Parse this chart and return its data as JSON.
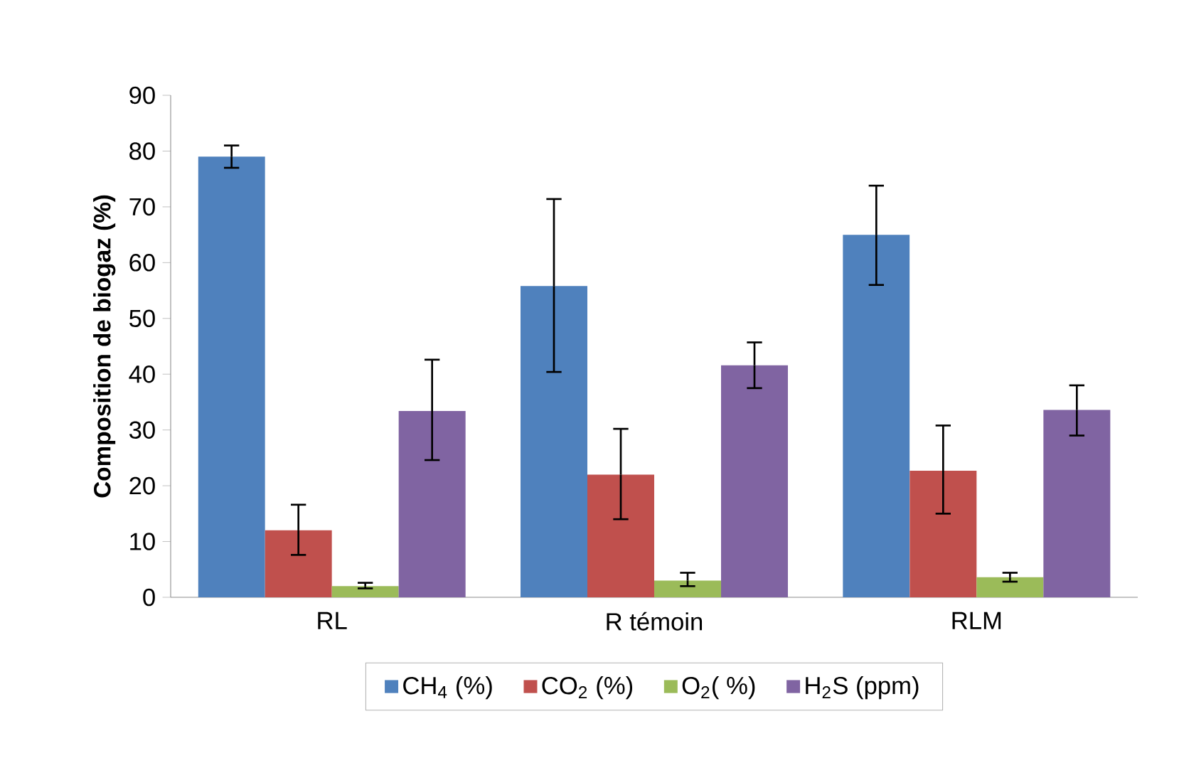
{
  "chart_data": {
    "type": "bar",
    "ylabel": "Composition de biogaz (%)",
    "categories": [
      "RL",
      "R témoin",
      "RLM"
    ],
    "series": [
      {
        "name": "CH$_{4}$ (%)",
        "color": "#4f81bd",
        "values": [
          79,
          55.8,
          65
        ],
        "errors": [
          [
            77,
            81
          ],
          [
            40.4,
            71.4
          ],
          [
            56,
            73.8
          ]
        ]
      },
      {
        "name": "CO$_{2}$ (%)",
        "color": "#c0504d",
        "values": [
          12,
          22,
          22.7
        ],
        "errors": [
          [
            7.6,
            16.6
          ],
          [
            14,
            30.2
          ],
          [
            15,
            30.8
          ]
        ]
      },
      {
        "name": "O$_{2}$( %)",
        "color": "#9bbb59",
        "values": [
          2,
          3,
          3.6
        ],
        "errors": [
          [
            1.6,
            2.6
          ],
          [
            2,
            4.4
          ],
          [
            2.8,
            4.4
          ]
        ]
      },
      {
        "name": "H$_{2}$S (ppm)",
        "color": "#8064a2",
        "values": [
          33.4,
          41.6,
          33.6
        ],
        "errors": [
          [
            24.6,
            42.6
          ],
          [
            37.5,
            45.7
          ],
          [
            29,
            38
          ]
        ]
      }
    ],
    "ylim": [
      0,
      90
    ],
    "yticks": [
      0,
      10,
      20,
      30,
      40,
      50,
      60,
      70,
      80,
      90
    ],
    "legend": "bottom"
  }
}
